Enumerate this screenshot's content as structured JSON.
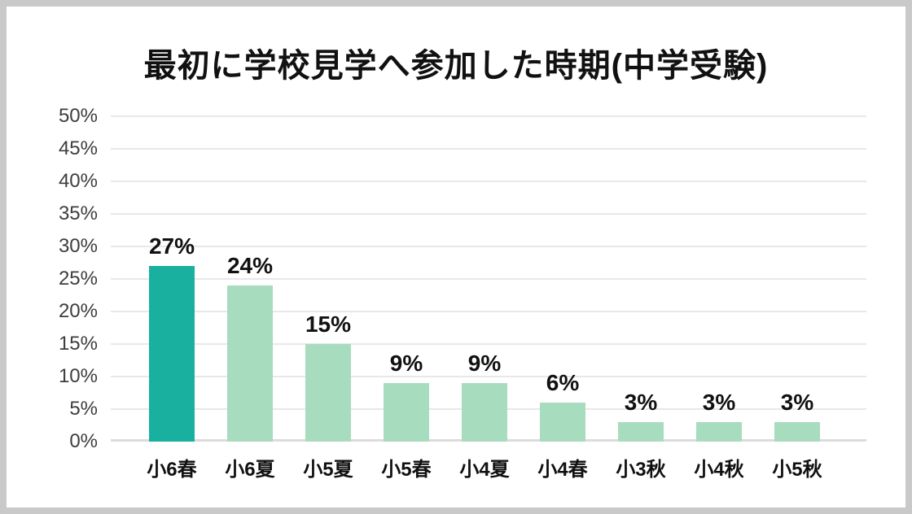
{
  "chart_data": {
    "type": "bar",
    "title": "最初に学校見学へ参加した時期(中学受験)",
    "categories": [
      "小6春",
      "小6夏",
      "小5夏",
      "小5春",
      "小4夏",
      "小4春",
      "小3秋",
      "小4秋",
      "小5秋"
    ],
    "values": [
      27,
      24,
      15,
      9,
      9,
      6,
      3,
      3,
      3
    ],
    "value_labels": [
      "27%",
      "24%",
      "15%",
      "9%",
      "9%",
      "6%",
      "3%",
      "3%",
      "3%"
    ],
    "xlabel": "",
    "ylabel": "",
    "ylim": [
      0,
      50
    ],
    "y_tick_step": 5,
    "y_tick_labels": [
      "0%",
      "5%",
      "10%",
      "15%",
      "20%",
      "25%",
      "30%",
      "35%",
      "40%",
      "45%",
      "50%"
    ],
    "grid": true,
    "legend": false,
    "highlight_index": 0
  },
  "colors": {
    "bar_highlight": "#1ab0a0",
    "bar_default": "#a8dcbe",
    "gridline": "#e8e8e8",
    "baseline": "#dcdcdc",
    "border": "#c9c9c9",
    "title_text": "#111111",
    "tick_text": "#3d3d3d"
  }
}
